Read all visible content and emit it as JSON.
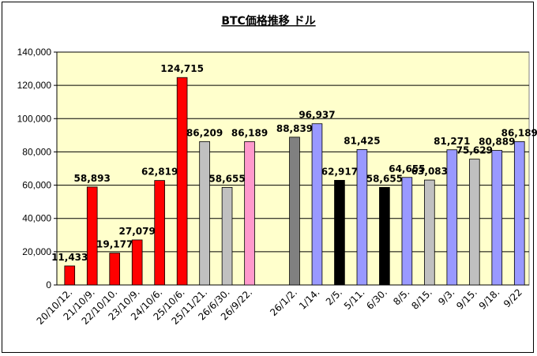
{
  "chart_data": {
    "type": "bar",
    "title": "BTC価格推移 ドル",
    "xlabel": "",
    "ylabel": "",
    "ylim": [
      0,
      140000
    ],
    "yticks": [
      "0",
      "20,000",
      "40,000",
      "60,000",
      "80,000",
      "100,000",
      "120,000",
      "140,000"
    ],
    "grid": true,
    "legend": "none",
    "plot_background": "#ffffcc",
    "categories": [
      "20/10/12.",
      "21/10/9.",
      "22/10/10.",
      "23/10/9.",
      "24/10/6.",
      "25/10/6.",
      "25/11/21.",
      "26/6/30.",
      "26/9/22.",
      "",
      "26/1/2.",
      "1/14.",
      "2/5.",
      "5/11.",
      "6/30.",
      "8/5.",
      "8/15.",
      "9/3.",
      "9/15.",
      "9/18.",
      "9/22"
    ],
    "values": [
      11433,
      58893,
      19177,
      27079,
      62819,
      124715,
      86209,
      58655,
      86189,
      null,
      88839,
      96937,
      62917,
      81425,
      58655,
      64655,
      63083,
      81271,
      75629,
      80889,
      86189
    ],
    "value_labels": [
      "11,433",
      "58,893",
      "19,177",
      "27,079",
      "62,819",
      "124,715",
      "86,209",
      "58,655",
      "86,189",
      "",
      "88,839",
      "96,937",
      "62,917",
      "81,425",
      "58,655",
      "64,655",
      "63,083",
      "81,271",
      "75,629",
      "80,889",
      "86,189"
    ],
    "colors": [
      "#ff0000",
      "#ff0000",
      "#ff0000",
      "#ff0000",
      "#ff0000",
      "#ff0000",
      "#c0c0c0",
      "#c0c0c0",
      "#ff99cc",
      null,
      "#808080",
      "#9999ff",
      "#000000",
      "#9999ff",
      "#000000",
      "#9999ff",
      "#c0c0c0",
      "#9999ff",
      "#c0c0c0",
      "#9999ff",
      "#9999ff"
    ]
  }
}
